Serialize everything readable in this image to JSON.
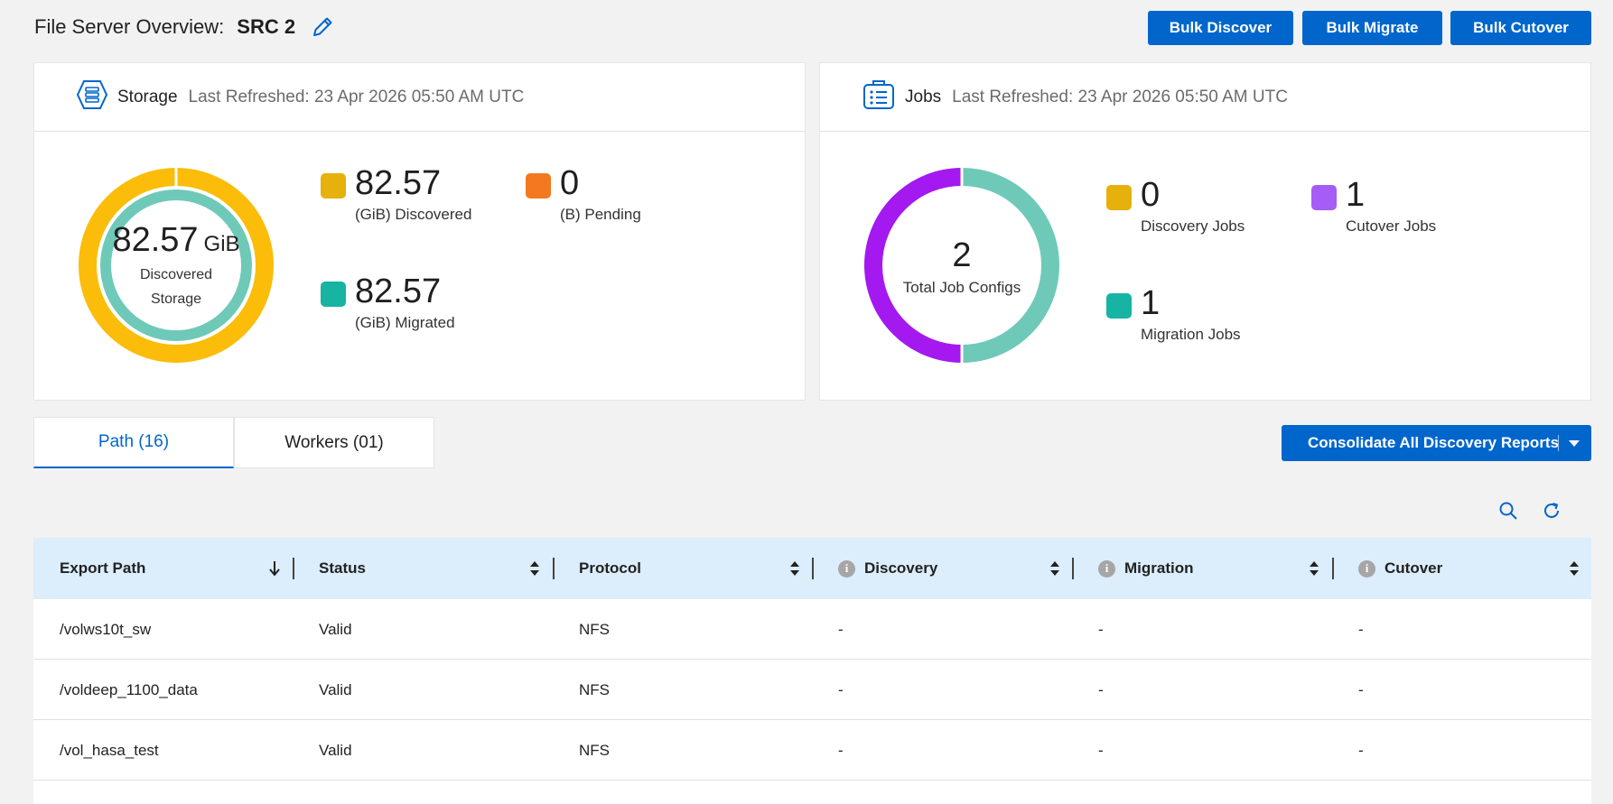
{
  "header": {
    "label": "File Server Overview:",
    "server_name": "SRC 2"
  },
  "actions": {
    "bulk_discover": "Bulk Discover",
    "bulk_migrate": "Bulk Migrate",
    "bulk_cutover": "Bulk Cutover"
  },
  "storage": {
    "title": "Storage",
    "refreshed": "Last Refreshed: 23 Apr 2026 05:50 AM UTC",
    "center_value": "82.57",
    "center_unit": "GiB",
    "center_caption_1": "Discovered",
    "center_caption_2": "Storage",
    "discovered_value": "82.57",
    "discovered_caption": "(GiB) Discovered",
    "pending_value": "0",
    "pending_caption": "(B) Pending",
    "migrated_value": "82.57",
    "migrated_caption": "(GiB) Migrated",
    "colors": {
      "discovered": "#e6b10c",
      "pending": "#f4781f",
      "migrated": "#17b3a3"
    }
  },
  "jobs": {
    "title": "Jobs",
    "refreshed": "Last Refreshed: 23 Apr 2026 05:50 AM UTC",
    "total_value": "2",
    "total_caption": "Total Job Configs",
    "discovery_value": "0",
    "discovery_caption": "Discovery Jobs",
    "cutover_value": "1",
    "cutover_caption": "Cutover Jobs",
    "migration_value": "1",
    "migration_caption": "Migration Jobs",
    "colors": {
      "discovery": "#e6b10c",
      "cutover": "#a55df5",
      "migration": "#17b3a3"
    }
  },
  "tabs": [
    {
      "label": "Path (16)"
    },
    {
      "label": "Workers (01)"
    }
  ],
  "consolidate_label": "Consolidate All Discovery Reports",
  "table": {
    "columns": [
      "Export Path",
      "Status",
      "Protocol",
      "Discovery",
      "Migration",
      "Cutover"
    ],
    "rows": [
      [
        "/volws10t_sw",
        "Valid",
        "NFS",
        "-",
        "-",
        "-"
      ],
      [
        "/voldeep_1100_data",
        "Valid",
        "NFS",
        "-",
        "-",
        "-"
      ],
      [
        "/vol_hasa_test",
        "Valid",
        "NFS",
        "-",
        "-",
        "-"
      ]
    ]
  }
}
